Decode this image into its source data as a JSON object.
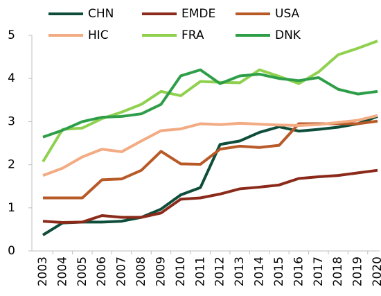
{
  "chart_data": {
    "type": "line",
    "x": [
      "2003",
      "2004",
      "2005",
      "2006",
      "2007",
      "2008",
      "2009",
      "2010",
      "2011",
      "2012",
      "2013",
      "2014",
      "2015",
      "2016",
      "2017",
      "2018",
      "2019",
      "2020"
    ],
    "ylim": [
      0,
      5
    ],
    "yticks": [
      0,
      1,
      2,
      3,
      4,
      5
    ],
    "grid": false,
    "legend": "top",
    "series": [
      {
        "name": "CHN",
        "color": "#0e4d3a",
        "values": [
          0.37,
          0.65,
          0.67,
          0.67,
          0.69,
          0.78,
          0.97,
          1.3,
          1.47,
          2.47,
          2.55,
          2.75,
          2.88,
          2.78,
          2.82,
          2.87,
          2.95,
          3.12
        ]
      },
      {
        "name": "EMDE",
        "color": "#8b2a1a",
        "values": [
          0.69,
          0.66,
          0.67,
          0.82,
          0.78,
          0.78,
          0.88,
          1.2,
          1.23,
          1.32,
          1.44,
          1.48,
          1.53,
          1.68,
          1.72,
          1.75,
          1.81,
          1.87
        ]
      },
      {
        "name": "USA",
        "color": "#b85a28",
        "values": [
          1.23,
          1.23,
          1.23,
          1.65,
          1.67,
          1.87,
          2.31,
          2.02,
          2.01,
          2.36,
          2.43,
          2.4,
          2.45,
          2.95,
          2.95,
          2.95,
          2.95,
          3.01
        ]
      },
      {
        "name": "HIC",
        "color": "#f2ab82",
        "values": [
          1.75,
          1.92,
          2.18,
          2.36,
          2.3,
          2.55,
          2.79,
          2.83,
          2.95,
          2.93,
          2.96,
          2.94,
          2.92,
          2.91,
          2.93,
          2.98,
          3.03,
          3.14
        ]
      },
      {
        "name": "FRA",
        "color": "#8fd14f",
        "values": [
          2.07,
          2.82,
          2.85,
          3.07,
          3.22,
          3.4,
          3.7,
          3.6,
          3.93,
          3.91,
          3.9,
          4.2,
          4.05,
          3.88,
          4.15,
          4.55,
          4.7,
          4.87
        ]
      },
      {
        "name": "DNK",
        "color": "#2e9e49",
        "values": [
          2.64,
          2.8,
          3.0,
          3.1,
          3.12,
          3.18,
          3.4,
          4.06,
          4.2,
          3.88,
          4.06,
          4.1,
          4.0,
          3.95,
          4.02,
          3.75,
          3.64,
          3.7
        ]
      }
    ]
  }
}
